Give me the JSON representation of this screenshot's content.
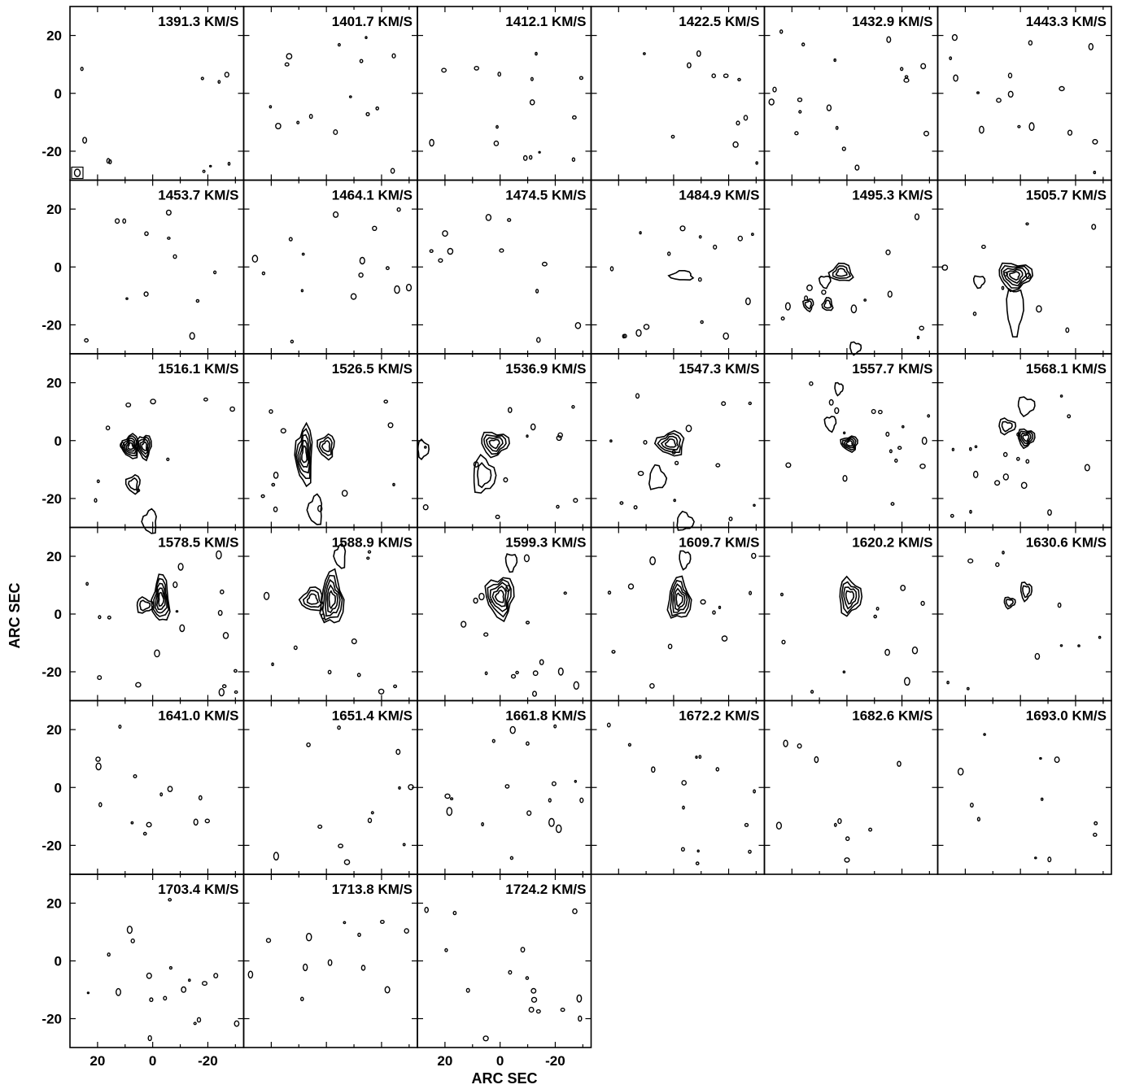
{
  "chart_data": {
    "type": "contour-channel-map",
    "title": "",
    "xlabel": "ARC SEC",
    "ylabel": "ARC SEC",
    "xlim": [
      -33,
      30
    ],
    "ylim": [
      -30,
      30
    ],
    "x_axis_reversed": true,
    "x_ticks": [
      20,
      0,
      -20
    ],
    "y_ticks": [
      20,
      0,
      -20
    ],
    "x_tick_labels": [
      "20",
      "0",
      "-20"
    ],
    "y_tick_labels": [
      "20",
      "0",
      "-20"
    ],
    "grid": false,
    "legend": "none",
    "columns": 6,
    "velocity_unit": "KM/S",
    "channels": [
      {
        "label": "1391.3 KM/S",
        "velocity": 1391.3,
        "emission": []
      },
      {
        "label": "1401.7 KM/S",
        "velocity": 1401.7,
        "emission": []
      },
      {
        "label": "1412.1 KM/S",
        "velocity": 1412.1,
        "emission": []
      },
      {
        "label": "1422.5 KM/S",
        "velocity": 1422.5,
        "emission": []
      },
      {
        "label": "1432.9 KM/S",
        "velocity": 1432.9,
        "emission": []
      },
      {
        "label": "1443.3 KM/S",
        "velocity": 1443.3,
        "emission": []
      },
      {
        "label": "1453.7 KM/S",
        "velocity": 1453.7,
        "emission": []
      },
      {
        "label": "1464.1 KM/S",
        "velocity": 1464.1,
        "emission": []
      },
      {
        "label": "1474.5 KM/S",
        "velocity": 1474.5,
        "emission": []
      },
      {
        "label": "1484.9 KM/S",
        "velocity": 1484.9,
        "emission": [
          {
            "x": -3,
            "y": -3,
            "rx": 4,
            "ry": 1.6,
            "levels": 1
          }
        ]
      },
      {
        "label": "1495.3 KM/S",
        "velocity": 1495.3,
        "emission": [
          {
            "x": 2,
            "y": -2,
            "rx": 4,
            "ry": 3,
            "levels": 3
          },
          {
            "x": 8,
            "y": -5,
            "rx": 2,
            "ry": 2,
            "levels": 1
          },
          {
            "x": 14,
            "y": -13,
            "rx": 1.8,
            "ry": 2,
            "levels": 2
          },
          {
            "x": 7,
            "y": -13,
            "rx": 1.8,
            "ry": 2.2,
            "levels": 2
          },
          {
            "x": -3,
            "y": -28,
            "rx": 2,
            "ry": 2,
            "levels": 1
          }
        ]
      },
      {
        "label": "1505.7 KM/S",
        "velocity": 1505.7,
        "emission": [
          {
            "x": 2,
            "y": -3,
            "rx": 6,
            "ry": 4.5,
            "levels": 5
          },
          {
            "x": 2,
            "y": -15,
            "rx": 3,
            "ry": 8,
            "levels": 1
          },
          {
            "x": 15,
            "y": -5,
            "rx": 2,
            "ry": 2,
            "levels": 1
          }
        ]
      },
      {
        "label": "1516.1 KM/S",
        "velocity": 1516.1,
        "emission": [
          {
            "x": 8,
            "y": -2,
            "rx": 3,
            "ry": 4,
            "levels": 5
          },
          {
            "x": 3,
            "y": -2,
            "rx": 2.5,
            "ry": 4,
            "levels": 4
          },
          {
            "x": 7,
            "y": -15,
            "rx": 2.5,
            "ry": 3,
            "levels": 2
          },
          {
            "x": 1,
            "y": -28,
            "rx": 2.5,
            "ry": 4,
            "levels": 1
          }
        ]
      },
      {
        "label": "1526.5 KM/S",
        "velocity": 1526.5,
        "emission": [
          {
            "x": 8,
            "y": -5,
            "rx": 3,
            "ry": 10,
            "levels": 5
          },
          {
            "x": 0,
            "y": -2,
            "rx": 3,
            "ry": 4,
            "levels": 3
          },
          {
            "x": 4,
            "y": -24,
            "rx": 2.5,
            "ry": 5,
            "levels": 1
          }
        ]
      },
      {
        "label": "1536.9 KM/S",
        "velocity": 1536.9,
        "emission": [
          {
            "x": 2,
            "y": -1,
            "rx": 5,
            "ry": 4,
            "levels": 4
          },
          {
            "x": 6,
            "y": -12,
            "rx": 4,
            "ry": 6,
            "levels": 2
          },
          {
            "x": 28,
            "y": -3,
            "rx": 2,
            "ry": 3,
            "levels": 1
          }
        ]
      },
      {
        "label": "1547.3 KM/S",
        "velocity": 1547.3,
        "emission": [
          {
            "x": 1,
            "y": -1,
            "rx": 5,
            "ry": 4,
            "levels": 4
          },
          {
            "x": 6,
            "y": -13,
            "rx": 3,
            "ry": 4,
            "levels": 1
          },
          {
            "x": -4,
            "y": -28,
            "rx": 3,
            "ry": 3,
            "levels": 1
          }
        ]
      },
      {
        "label": "1557.7 KM/S",
        "velocity": 1557.7,
        "emission": [
          {
            "x": -1,
            "y": -1,
            "rx": 3,
            "ry": 2.5,
            "levels": 4
          },
          {
            "x": 6,
            "y": 6,
            "rx": 2,
            "ry": 2.5,
            "levels": 1
          },
          {
            "x": 3,
            "y": 18,
            "rx": 1.5,
            "ry": 2,
            "levels": 1
          }
        ]
      },
      {
        "label": "1568.1 KM/S",
        "velocity": 1568.1,
        "emission": [
          {
            "x": -2,
            "y": 1,
            "rx": 3,
            "ry": 3,
            "levels": 4
          },
          {
            "x": 5,
            "y": 5,
            "rx": 3,
            "ry": 2.5,
            "levels": 2
          },
          {
            "x": -2,
            "y": 12,
            "rx": 3,
            "ry": 3,
            "levels": 1
          }
        ]
      },
      {
        "label": "1578.5 KM/S",
        "velocity": 1578.5,
        "emission": [
          {
            "x": -3,
            "y": 5,
            "rx": 3,
            "ry": 8,
            "levels": 5
          },
          {
            "x": 3,
            "y": 3,
            "rx": 3,
            "ry": 2.5,
            "levels": 2
          }
        ]
      },
      {
        "label": "1588.9 KM/S",
        "velocity": 1588.9,
        "emission": [
          {
            "x": -2,
            "y": 5,
            "rx": 4,
            "ry": 9,
            "levels": 5
          },
          {
            "x": 5,
            "y": 5,
            "rx": 4,
            "ry": 4,
            "levels": 3
          },
          {
            "x": -5,
            "y": 20,
            "rx": 2,
            "ry": 4,
            "levels": 1
          }
        ]
      },
      {
        "label": "1599.3 KM/S",
        "velocity": 1599.3,
        "emission": [
          {
            "x": 0,
            "y": 6,
            "rx": 5,
            "ry": 7,
            "levels": 5
          },
          {
            "x": -4,
            "y": 18,
            "rx": 2,
            "ry": 3,
            "levels": 1
          }
        ]
      },
      {
        "label": "1609.7 KM/S",
        "velocity": 1609.7,
        "emission": [
          {
            "x": -2,
            "y": 5,
            "rx": 4,
            "ry": 7,
            "levels": 5
          },
          {
            "x": -4,
            "y": 19,
            "rx": 2,
            "ry": 3,
            "levels": 1
          }
        ]
      },
      {
        "label": "1620.2 KM/S",
        "velocity": 1620.2,
        "emission": [
          {
            "x": -1,
            "y": 6,
            "rx": 4,
            "ry": 6,
            "levels": 4
          }
        ]
      },
      {
        "label": "1630.6 KM/S",
        "velocity": 1630.6,
        "emission": [
          {
            "x": -2,
            "y": 8,
            "rx": 2,
            "ry": 3,
            "levels": 2
          },
          {
            "x": 4,
            "y": 4,
            "rx": 2,
            "ry": 1.8,
            "levels": 2
          }
        ]
      },
      {
        "label": "1641.0 KM/S",
        "velocity": 1641.0,
        "emission": []
      },
      {
        "label": "1651.4 KM/S",
        "velocity": 1651.4,
        "emission": []
      },
      {
        "label": "1661.8 KM/S",
        "velocity": 1661.8,
        "emission": []
      },
      {
        "label": "1672.2 KM/S",
        "velocity": 1672.2,
        "emission": []
      },
      {
        "label": "1682.6 KM/S",
        "velocity": 1682.6,
        "emission": []
      },
      {
        "label": "1693.0 KM/S",
        "velocity": 1693.0,
        "emission": []
      },
      {
        "label": "1703.4 KM/S",
        "velocity": 1703.4,
        "emission": []
      },
      {
        "label": "1713.8 KM/S",
        "velocity": 1713.8,
        "emission": []
      },
      {
        "label": "1724.2 KM/S",
        "velocity": 1724.2,
        "emission": []
      }
    ]
  }
}
